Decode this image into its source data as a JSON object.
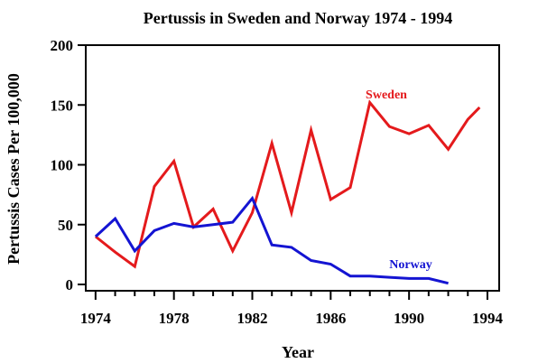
{
  "chart_data": {
    "type": "line",
    "title": "Pertussis in Sweden and Norway 1974 - 1994",
    "xlabel": "Year",
    "ylabel": "Pertussis Cases Per 100,000",
    "xlim": [
      1973.5,
      1994.6
    ],
    "ylim": [
      0,
      200
    ],
    "x_ticks": [
      1974,
      1978,
      1982,
      1986,
      1990,
      1994
    ],
    "y_ticks": [
      0,
      50,
      100,
      150,
      200
    ],
    "grid": false,
    "series": [
      {
        "name": "Sweden",
        "color": "#e41a1c",
        "x": [
          1974,
          1975,
          1976,
          1977,
          1978,
          1979,
          1980,
          1981,
          1982,
          1983,
          1984,
          1985,
          1986,
          1987,
          1988,
          1989,
          1990,
          1991,
          1992,
          1993,
          1993.6
        ],
        "y": [
          40,
          27,
          15,
          82,
          103,
          48,
          63,
          28,
          60,
          118,
          60,
          129,
          71,
          81,
          152,
          132,
          126,
          133,
          113,
          138,
          148
        ]
      },
      {
        "name": "Norway",
        "color": "#1414d2",
        "x": [
          1974,
          1975,
          1976,
          1977,
          1978,
          1979,
          1980,
          1981,
          1982,
          1983,
          1984,
          1985,
          1986,
          1987,
          1988,
          1989,
          1990,
          1991,
          1992
        ],
        "y": [
          40,
          55,
          28,
          45,
          51,
          48,
          50,
          52,
          72,
          33,
          31,
          20,
          17,
          7,
          7,
          6,
          5,
          5,
          1
        ]
      }
    ]
  }
}
